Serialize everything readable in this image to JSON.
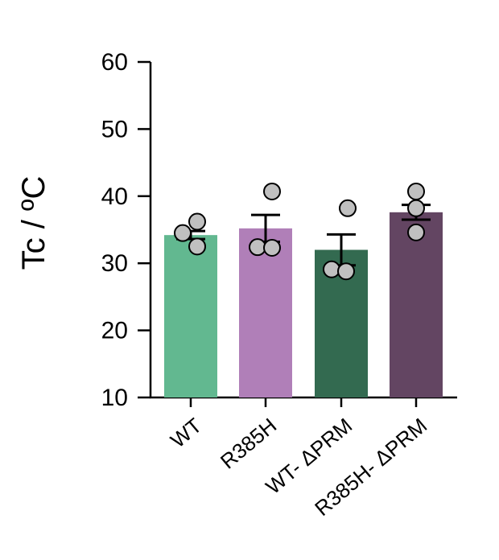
{
  "chart_data": {
    "type": "bar",
    "title": "",
    "xlabel": "",
    "ylabel": "Tc / ºC",
    "ylim": [
      10,
      60
    ],
    "yticks": [
      "10",
      "20",
      "30",
      "40",
      "50",
      "60"
    ],
    "categories": [
      "WT",
      "R385H",
      "WT- ΔPRM",
      "R385H- ΔPRM"
    ],
    "values": [
      34.2,
      35.2,
      32.0,
      37.6
    ],
    "error": [
      0.6,
      2.0,
      2.3,
      1.1
    ],
    "points": [
      [
        36.2,
        34.5,
        32.5
      ],
      [
        40.7,
        32.4,
        32.3
      ],
      [
        38.2,
        29.1,
        28.8
      ],
      [
        40.7,
        38.2,
        34.6
      ]
    ],
    "colors": [
      "#62b890",
      "#b07fb8",
      "#336a50",
      "#634562"
    ],
    "grid": false,
    "legend": "none"
  }
}
